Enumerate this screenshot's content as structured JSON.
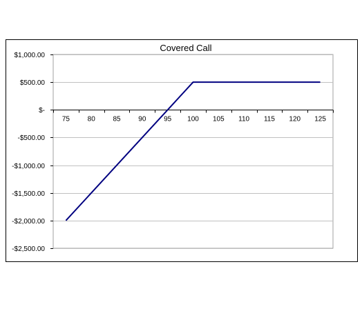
{
  "chart_data": {
    "type": "line",
    "title": "Covered Call",
    "xlabel": "",
    "ylabel": "",
    "x": [
      75,
      80,
      85,
      90,
      95,
      100,
      105,
      110,
      115,
      120,
      125
    ],
    "series": [
      {
        "name": "",
        "color": "#000080",
        "values": [
          -2000,
          -1500,
          -1000,
          -500,
          0,
          500,
          500,
          500,
          500,
          500,
          500
        ]
      }
    ],
    "x_tick_labels": [
      "75",
      "80",
      "85",
      "90",
      "95",
      "100",
      "105",
      "110",
      "115",
      "120",
      "125"
    ],
    "y_ticks": [
      1000,
      500,
      0,
      -500,
      -1000,
      -1500,
      -2000,
      -2500
    ],
    "y_tick_labels": [
      "$1,000.00",
      "$500.00",
      "$-",
      "-$500.00",
      "-$1,000.00",
      "-$1,500.00",
      "-$2,000.00",
      "-$2,500.00"
    ],
    "xlim": [
      72.5,
      127.5
    ],
    "ylim": [
      -2500,
      1000
    ],
    "grid": true,
    "legend": "none",
    "colors": {
      "line": "#000080",
      "gridline": "#c0c0c0",
      "axis": "#000000",
      "plot_border": "#a0a0a0"
    }
  }
}
